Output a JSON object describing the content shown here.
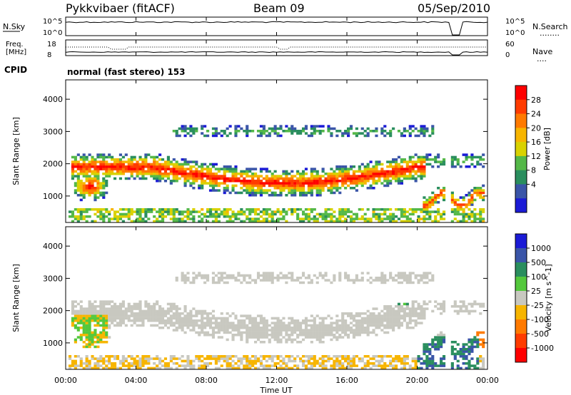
{
  "header": {
    "station": "Pykkvibaer (fitACF)",
    "beam": "Beam 09",
    "date": "05/Sep/2010"
  },
  "noise_panel": {
    "left_label": "N.Sky",
    "left_ticks": [
      "10^5",
      "10^0"
    ],
    "right_ticks": [
      "10^5",
      "10^0"
    ],
    "right_label": "N.Search",
    "right_legend_dots": "........"
  },
  "freq_panel": {
    "left_label_line1": "Freq.",
    "left_label_line2": "[MHz]",
    "left_ticks": [
      "18",
      "8"
    ],
    "right_ticks": [
      "60",
      "0"
    ],
    "right_label": "Nave",
    "right_legend_dots": "...."
  },
  "cpid": {
    "label": "CPID",
    "value": "normal (fast stereo) 153"
  },
  "chart_data": [
    {
      "type": "heatmap",
      "name": "power",
      "ylabel": "Slant Range [km]",
      "y_ticks": [
        1000,
        2000,
        3000,
        4000
      ],
      "ylim": [
        180,
        4600
      ],
      "xlim_hours": [
        0,
        24
      ],
      "colorbar": {
        "label": "Power [dB]",
        "ticks": [
          "28",
          "24",
          "20",
          "16",
          "12",
          "8",
          "4"
        ],
        "colors": [
          "#ff0000",
          "#ff3c00",
          "#ff7a00",
          "#f7b500",
          "#d9d200",
          "#54b848",
          "#2a8e5e",
          "#3a55a8",
          "#1b1bd6"
        ]
      }
    },
    {
      "type": "heatmap",
      "name": "velocity",
      "ylabel": "Slant Range [km]",
      "y_ticks": [
        1000,
        2000,
        3000,
        4000
      ],
      "ylim": [
        180,
        4600
      ],
      "xlim_hours": [
        0,
        24
      ],
      "colorbar": {
        "label": "Velocity [m s^-1]",
        "ticks": [
          "1000",
          "500",
          "100",
          "25",
          "-25",
          "-100",
          "-500",
          "-1000"
        ],
        "colors": [
          "#1b1bd6",
          "#3a55a8",
          "#2a8e5e",
          "#54c83c",
          "#c8c8c0",
          "#f7b500",
          "#ff7a00",
          "#ff3c00",
          "#ff0000"
        ]
      }
    }
  ],
  "x_axis": {
    "ticks": [
      "00:00",
      "04:00",
      "08:00",
      "12:00",
      "16:00",
      "20:00",
      "00:00"
    ],
    "label": "Time UT"
  }
}
